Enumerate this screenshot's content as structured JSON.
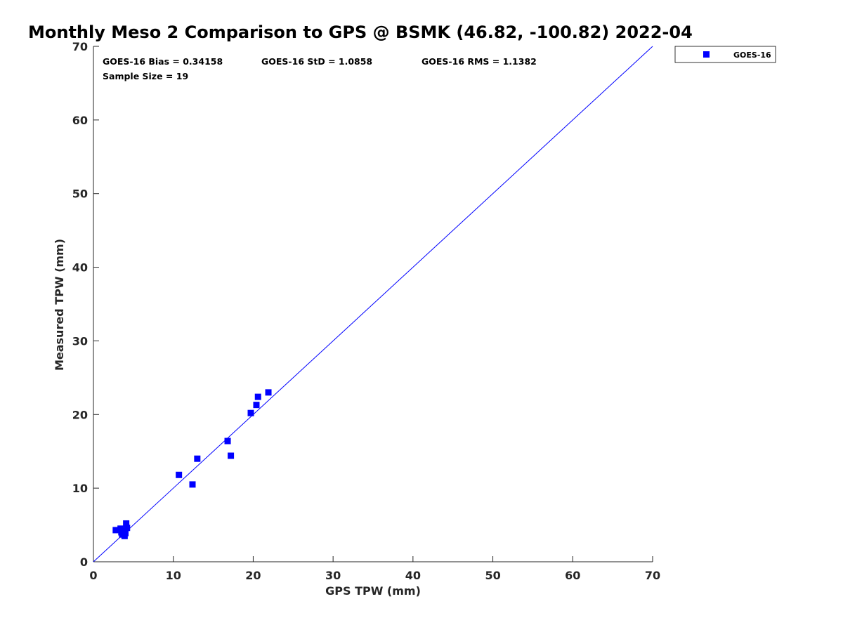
{
  "chart_data": {
    "type": "scatter",
    "title": "Monthly Meso 2 Comparison to GPS @ BSMK (46.82, -100.82) 2022-04",
    "xlabel": "GPS TPW (mm)",
    "ylabel": "Measured TPW (mm)",
    "xlim": [
      0,
      70
    ],
    "ylim": [
      0,
      70
    ],
    "xticks": [
      "0",
      "10",
      "20",
      "30",
      "40",
      "50",
      "60",
      "70"
    ],
    "yticks": [
      "0",
      "10",
      "20",
      "30",
      "40",
      "50",
      "60",
      "70"
    ],
    "grid": false,
    "legend_position": "outside-top-right",
    "reference_line": {
      "from": [
        0,
        0
      ],
      "to": [
        70,
        70
      ],
      "color": "#0000ff"
    },
    "stats": {
      "bias": "GOES-16 Bias = 0.34158",
      "std": "GOES-16 StD = 1.0858",
      "rms": "GOES-16 RMS = 1.1382",
      "sample_size": "Sample Size = 19"
    },
    "series": [
      {
        "name": "GOES-16",
        "color": "#0000ff",
        "marker": "square",
        "points": [
          [
            2.8,
            4.3
          ],
          [
            3.4,
            4.5
          ],
          [
            3.6,
            4.1
          ],
          [
            3.6,
            3.7
          ],
          [
            3.9,
            3.5
          ],
          [
            4.0,
            3.9
          ],
          [
            4.1,
            5.2
          ],
          [
            4.2,
            4.6
          ],
          [
            3.8,
            4.3
          ],
          [
            3.5,
            4.0
          ],
          [
            10.7,
            11.8
          ],
          [
            12.4,
            10.5
          ],
          [
            13.0,
            14.0
          ],
          [
            16.8,
            16.4
          ],
          [
            17.2,
            14.4
          ],
          [
            19.7,
            20.2
          ],
          [
            20.4,
            21.3
          ],
          [
            20.6,
            22.4
          ],
          [
            21.9,
            23.0
          ]
        ]
      }
    ]
  }
}
